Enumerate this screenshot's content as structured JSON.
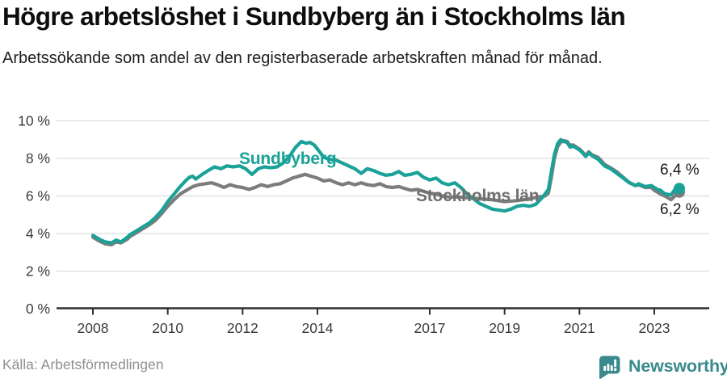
{
  "chart_data": {
    "type": "line",
    "title": "Högre arbetslöshet i Sundbyberg än i Stockholms län",
    "subtitle": "Arbetssökande som andel av den registerbaserade arbetskraften månad för månad.",
    "x_unit": "decimal_year_monthly",
    "xlim": [
      2007.0,
      2024.2
    ],
    "ylim": [
      0,
      10
    ],
    "grid": "horizontal",
    "legend_position": "inline-labels",
    "yticks": [
      {
        "value": 0,
        "label": "0 %"
      },
      {
        "value": 2,
        "label": "2 %"
      },
      {
        "value": 4,
        "label": "4 %"
      },
      {
        "value": 6,
        "label": "6 %"
      },
      {
        "value": 8,
        "label": "8 %"
      },
      {
        "value": 10,
        "label": "10 %"
      }
    ],
    "xticks": [
      {
        "value": 2008,
        "label": "2008"
      },
      {
        "value": 2010,
        "label": "2010"
      },
      {
        "value": 2012,
        "label": "2012"
      },
      {
        "value": 2014,
        "label": "2014"
      },
      {
        "value": 2017,
        "label": "2017"
      },
      {
        "value": 2019,
        "label": "2019"
      },
      {
        "value": 2021,
        "label": "2021"
      },
      {
        "value": 2023,
        "label": "2023"
      }
    ],
    "series": [
      {
        "id": "stockholms-lan",
        "name": "Stockholms län",
        "color": "#7c7c7c",
        "end_label": "6,2 %",
        "end_value": 6.2,
        "marker_end": true,
        "points": [
          [
            2008.0,
            3.8
          ],
          [
            2008.17,
            3.6
          ],
          [
            2008.33,
            3.45
          ],
          [
            2008.5,
            3.4
          ],
          [
            2008.62,
            3.55
          ],
          [
            2008.75,
            3.5
          ],
          [
            2008.92,
            3.7
          ],
          [
            2009.0,
            3.85
          ],
          [
            2009.17,
            4.05
          ],
          [
            2009.33,
            4.25
          ],
          [
            2009.5,
            4.45
          ],
          [
            2009.67,
            4.7
          ],
          [
            2009.83,
            5.05
          ],
          [
            2010.0,
            5.45
          ],
          [
            2010.17,
            5.8
          ],
          [
            2010.33,
            6.1
          ],
          [
            2010.5,
            6.3
          ],
          [
            2010.67,
            6.5
          ],
          [
            2010.83,
            6.6
          ],
          [
            2011.0,
            6.65
          ],
          [
            2011.17,
            6.7
          ],
          [
            2011.33,
            6.6
          ],
          [
            2011.5,
            6.45
          ],
          [
            2011.67,
            6.6
          ],
          [
            2011.83,
            6.5
          ],
          [
            2012.0,
            6.45
          ],
          [
            2012.17,
            6.35
          ],
          [
            2012.33,
            6.45
          ],
          [
            2012.5,
            6.6
          ],
          [
            2012.67,
            6.5
          ],
          [
            2012.83,
            6.6
          ],
          [
            2013.0,
            6.65
          ],
          [
            2013.17,
            6.8
          ],
          [
            2013.33,
            6.95
          ],
          [
            2013.5,
            7.05
          ],
          [
            2013.67,
            7.15
          ],
          [
            2013.83,
            7.05
          ],
          [
            2014.0,
            6.95
          ],
          [
            2014.17,
            6.8
          ],
          [
            2014.33,
            6.85
          ],
          [
            2014.5,
            6.7
          ],
          [
            2014.67,
            6.6
          ],
          [
            2014.83,
            6.7
          ],
          [
            2015.0,
            6.6
          ],
          [
            2015.17,
            6.7
          ],
          [
            2015.33,
            6.6
          ],
          [
            2015.5,
            6.55
          ],
          [
            2015.67,
            6.65
          ],
          [
            2015.83,
            6.5
          ],
          [
            2016.0,
            6.45
          ],
          [
            2016.17,
            6.5
          ],
          [
            2016.33,
            6.4
          ],
          [
            2016.5,
            6.3
          ],
          [
            2016.67,
            6.35
          ],
          [
            2016.83,
            6.25
          ],
          [
            2017.0,
            6.15
          ],
          [
            2017.17,
            6.1
          ],
          [
            2017.33,
            6.0
          ],
          [
            2017.5,
            5.95
          ],
          [
            2017.75,
            5.95
          ],
          [
            2018.0,
            5.9
          ],
          [
            2018.33,
            5.85
          ],
          [
            2018.67,
            5.8
          ],
          [
            2019.0,
            5.7
          ],
          [
            2019.33,
            5.75
          ],
          [
            2019.67,
            5.85
          ],
          [
            2019.92,
            5.95
          ],
          [
            2020.08,
            6.0
          ],
          [
            2020.17,
            6.15
          ],
          [
            2020.25,
            7.0
          ],
          [
            2020.33,
            8.0
          ],
          [
            2020.42,
            8.65
          ],
          [
            2020.5,
            8.85
          ],
          [
            2020.58,
            8.95
          ],
          [
            2020.67,
            8.9
          ],
          [
            2020.75,
            8.7
          ],
          [
            2020.83,
            8.72
          ],
          [
            2020.92,
            8.6
          ],
          [
            2021.0,
            8.5
          ],
          [
            2021.08,
            8.35
          ],
          [
            2021.17,
            8.15
          ],
          [
            2021.25,
            8.35
          ],
          [
            2021.33,
            8.2
          ],
          [
            2021.5,
            8.05
          ],
          [
            2021.67,
            7.68
          ],
          [
            2021.83,
            7.5
          ],
          [
            2022.0,
            7.28
          ],
          [
            2022.17,
            7.0
          ],
          [
            2022.33,
            6.72
          ],
          [
            2022.5,
            6.55
          ],
          [
            2022.58,
            6.6
          ],
          [
            2022.75,
            6.45
          ],
          [
            2022.92,
            6.45
          ],
          [
            2023.0,
            6.3
          ],
          [
            2023.17,
            6.1
          ],
          [
            2023.33,
            5.95
          ],
          [
            2023.45,
            5.8
          ],
          [
            2023.55,
            6.0
          ],
          [
            2023.67,
            6.2
          ]
        ]
      },
      {
        "id": "sundbyberg",
        "name": "Sundbyberg",
        "color": "#1aa298",
        "end_label": "6,4 %",
        "end_value": 6.4,
        "marker_end": true,
        "points": [
          [
            2008.0,
            3.9
          ],
          [
            2008.17,
            3.7
          ],
          [
            2008.33,
            3.55
          ],
          [
            2008.5,
            3.5
          ],
          [
            2008.62,
            3.65
          ],
          [
            2008.75,
            3.55
          ],
          [
            2008.92,
            3.8
          ],
          [
            2009.0,
            3.95
          ],
          [
            2009.17,
            4.15
          ],
          [
            2009.33,
            4.35
          ],
          [
            2009.5,
            4.55
          ],
          [
            2009.67,
            4.85
          ],
          [
            2009.83,
            5.2
          ],
          [
            2010.0,
            5.7
          ],
          [
            2010.17,
            6.1
          ],
          [
            2010.33,
            6.5
          ],
          [
            2010.5,
            6.85
          ],
          [
            2010.58,
            7.0
          ],
          [
            2010.67,
            7.05
          ],
          [
            2010.75,
            6.9
          ],
          [
            2010.92,
            7.15
          ],
          [
            2011.08,
            7.35
          ],
          [
            2011.25,
            7.55
          ],
          [
            2011.42,
            7.45
          ],
          [
            2011.58,
            7.6
          ],
          [
            2011.75,
            7.55
          ],
          [
            2011.92,
            7.6
          ],
          [
            2012.08,
            7.45
          ],
          [
            2012.25,
            7.15
          ],
          [
            2012.42,
            7.45
          ],
          [
            2012.58,
            7.55
          ],
          [
            2012.75,
            7.5
          ],
          [
            2012.92,
            7.55
          ],
          [
            2013.08,
            7.75
          ],
          [
            2013.25,
            8.1
          ],
          [
            2013.42,
            8.6
          ],
          [
            2013.57,
            8.9
          ],
          [
            2013.7,
            8.8
          ],
          [
            2013.8,
            8.85
          ],
          [
            2013.92,
            8.7
          ],
          [
            2014.0,
            8.5
          ],
          [
            2014.17,
            8.05
          ],
          [
            2014.33,
            7.95
          ],
          [
            2014.5,
            7.9
          ],
          [
            2014.67,
            7.75
          ],
          [
            2014.83,
            7.6
          ],
          [
            2015.0,
            7.45
          ],
          [
            2015.17,
            7.2
          ],
          [
            2015.33,
            7.45
          ],
          [
            2015.5,
            7.35
          ],
          [
            2015.67,
            7.2
          ],
          [
            2015.83,
            7.1
          ],
          [
            2016.0,
            7.15
          ],
          [
            2016.17,
            7.3
          ],
          [
            2016.33,
            7.1
          ],
          [
            2016.5,
            7.15
          ],
          [
            2016.67,
            7.25
          ],
          [
            2016.83,
            7.0
          ],
          [
            2017.0,
            6.85
          ],
          [
            2017.17,
            6.95
          ],
          [
            2017.33,
            6.7
          ],
          [
            2017.5,
            6.6
          ],
          [
            2017.67,
            6.7
          ],
          [
            2017.83,
            6.45
          ],
          [
            2018.0,
            6.1
          ],
          [
            2018.17,
            5.85
          ],
          [
            2018.33,
            5.6
          ],
          [
            2018.5,
            5.45
          ],
          [
            2018.67,
            5.3
          ],
          [
            2018.83,
            5.25
          ],
          [
            2019.0,
            5.2
          ],
          [
            2019.17,
            5.3
          ],
          [
            2019.33,
            5.45
          ],
          [
            2019.5,
            5.5
          ],
          [
            2019.67,
            5.45
          ],
          [
            2019.83,
            5.55
          ],
          [
            2020.0,
            5.9
          ],
          [
            2020.08,
            6.1
          ],
          [
            2020.17,
            6.35
          ],
          [
            2020.25,
            7.3
          ],
          [
            2020.33,
            8.2
          ],
          [
            2020.42,
            8.8
          ],
          [
            2020.5,
            9.0
          ],
          [
            2020.58,
            8.9
          ],
          [
            2020.67,
            8.85
          ],
          [
            2020.75,
            8.6
          ],
          [
            2020.83,
            8.65
          ],
          [
            2020.92,
            8.55
          ],
          [
            2021.0,
            8.45
          ],
          [
            2021.08,
            8.3
          ],
          [
            2021.17,
            8.1
          ],
          [
            2021.25,
            8.3
          ],
          [
            2021.33,
            8.15
          ],
          [
            2021.5,
            7.95
          ],
          [
            2021.67,
            7.6
          ],
          [
            2021.83,
            7.45
          ],
          [
            2022.0,
            7.2
          ],
          [
            2022.17,
            6.95
          ],
          [
            2022.33,
            6.7
          ],
          [
            2022.5,
            6.55
          ],
          [
            2022.58,
            6.65
          ],
          [
            2022.75,
            6.5
          ],
          [
            2022.92,
            6.55
          ],
          [
            2023.0,
            6.45
          ],
          [
            2023.08,
            6.35
          ],
          [
            2023.17,
            6.3
          ],
          [
            2023.25,
            6.15
          ],
          [
            2023.33,
            6.1
          ],
          [
            2023.45,
            6.05
          ],
          [
            2023.55,
            6.35
          ],
          [
            2023.67,
            6.4
          ]
        ]
      }
    ]
  },
  "footer": {
    "source": "Källa: Arbetsförmedlingen",
    "brand": "Newsworthy"
  },
  "colors": {
    "sundbyberg": "#1aa298",
    "stockholms_lan": "#7c7c7c",
    "brand_teal": "#388a8c",
    "gridline": "#dcdcdc",
    "axis": "#2e2e2e"
  }
}
